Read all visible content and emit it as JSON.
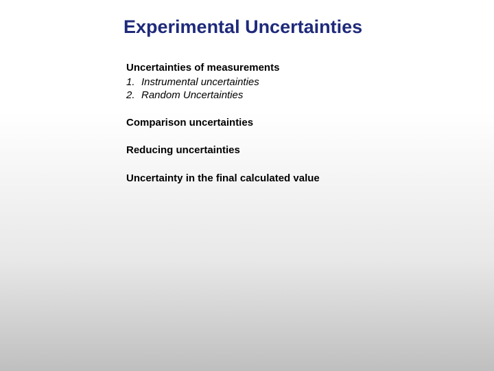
{
  "title": "Experimental Uncertainties",
  "content": {
    "section1": {
      "heading": "Uncertainties of measurements",
      "items": [
        {
          "num": "1.",
          "text": "Instrumental uncertainties"
        },
        {
          "num": "2.",
          "text": "Random Uncertainties"
        }
      ]
    },
    "section2": "Comparison uncertainties",
    "section3": "Reducing uncertainties",
    "section4": "Uncertainty in the final calculated value"
  },
  "colors": {
    "title": "#1f2a7a",
    "body_text": "#000000",
    "background_top": "#ffffff",
    "background_bottom": "#bfbfbf"
  },
  "typography": {
    "title_fontsize": 27,
    "body_fontsize": 15,
    "font_family": "Arial"
  }
}
